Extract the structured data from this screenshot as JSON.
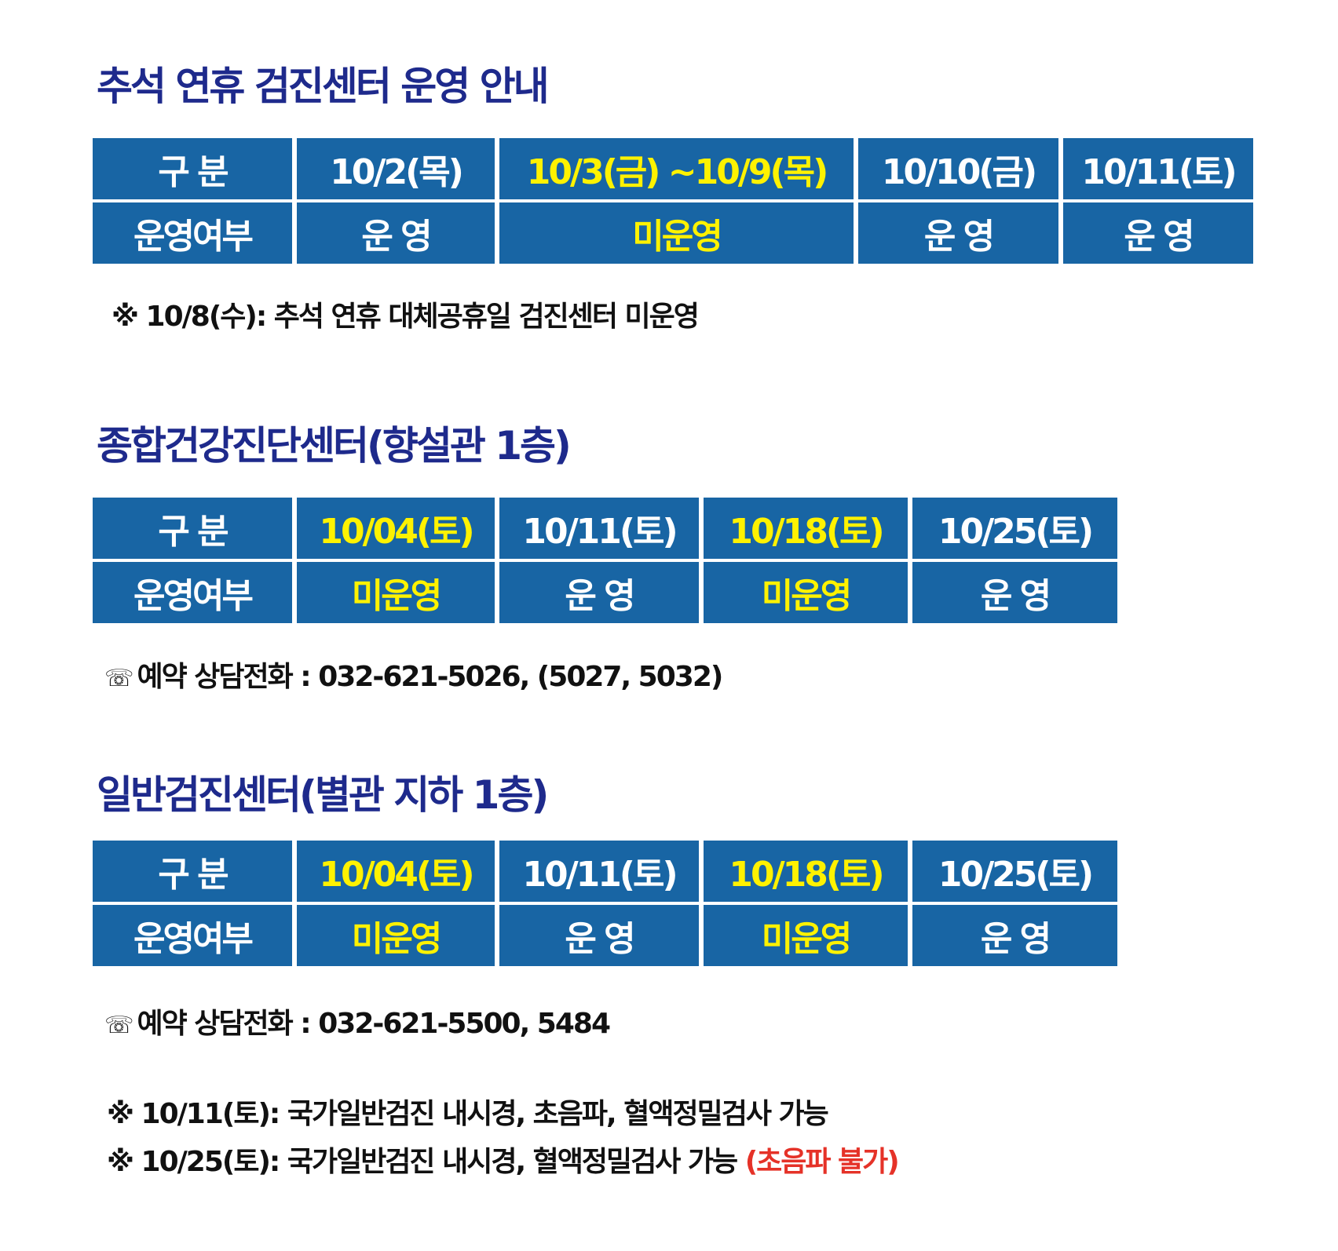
{
  "section1": {
    "title": "추석 연휴 검진센터 운영 안내",
    "header": [
      "구 분",
      "10/2(목)",
      "10/3(금) ~10/9(목)",
      "10/10(금)",
      "10/11(토)"
    ],
    "status_label": "운영여부",
    "status": [
      "운 영",
      "미운영",
      "운 영",
      "운 영"
    ],
    "note": "※ 10/8(수): 추석 연휴 대체공휴일 검진센터 미운영"
  },
  "section2": {
    "title": "종합건강진단센터(향설관 1층)",
    "header": [
      "구 분",
      "10/04(토)",
      "10/11(토)",
      "10/18(토)",
      "10/25(토)"
    ],
    "status_label": "운영여부",
    "status": [
      "미운영",
      "운 영",
      "미운영",
      "운 영"
    ],
    "phone_icon": "telephone-icon",
    "phone_glyph": "☏",
    "phone": "예약 상담전화 : 032-621-5026, (5027, 5032)"
  },
  "section3": {
    "title": "일반검진센터(별관 지하 1층)",
    "header": [
      "구 분",
      "10/04(토)",
      "10/11(토)",
      "10/18(토)",
      "10/25(토)"
    ],
    "status_label": "운영여부",
    "status": [
      "미운영",
      "운 영",
      "미운영",
      "운 영"
    ],
    "phone_glyph": "☏",
    "phone": "예약 상담전화 : 032-621-5500, 5484",
    "notes": [
      {
        "text": "※ 10/11(토): 국가일반검진 내시경, 초음파, 혈액정밀검사 가능"
      },
      {
        "text": "※ 10/25(토): 국가일반검진 내시경, 혈액정밀검사 가능 ",
        "highlight": "(초음파 불가)"
      }
    ]
  },
  "colors": {
    "title": "#1e2a8c",
    "cell": "#1865a4",
    "closed_highlight": "#fff200",
    "warning": "#e53228"
  }
}
